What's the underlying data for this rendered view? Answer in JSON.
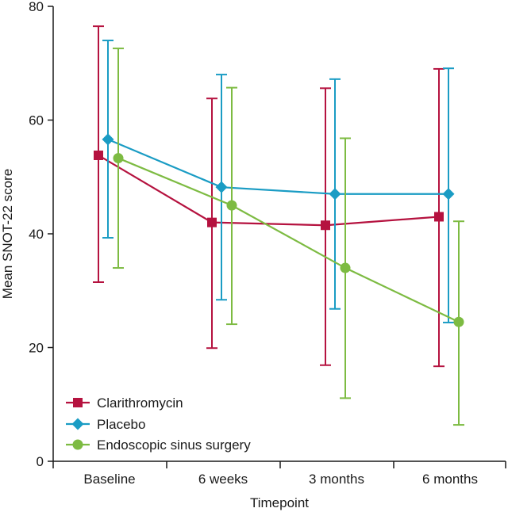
{
  "chart_data": {
    "type": "line",
    "title": "",
    "xlabel": "Timepoint",
    "ylabel": "Mean SNOT-22 score",
    "ylim": [
      0,
      80
    ],
    "yticks": [
      0,
      20,
      40,
      60,
      80
    ],
    "categories": [
      "Baseline",
      "6 weeks",
      "3 months",
      "6 months"
    ],
    "error_bars": true,
    "grid": false,
    "legend_position": "bottom-left",
    "series": [
      {
        "name": "Clarithromycin",
        "color": "#B5123F",
        "marker": "square",
        "values": [
          53.8,
          42.0,
          41.5,
          43.0
        ],
        "lower": [
          31.5,
          19.9,
          16.9,
          16.7
        ],
        "upper": [
          76.5,
          63.8,
          65.6,
          69.0
        ]
      },
      {
        "name": "Placebo",
        "color": "#1A9CC4",
        "marker": "diamond",
        "values": [
          56.6,
          48.2,
          47.0,
          47.0
        ],
        "lower": [
          39.3,
          28.4,
          26.8,
          24.4
        ],
        "upper": [
          74.0,
          68.0,
          67.2,
          69.1
        ]
      },
      {
        "name": "Endoscopic sinus surgery",
        "color": "#7DBB42",
        "marker": "circle",
        "values": [
          53.3,
          45.0,
          34.0,
          24.5
        ],
        "lower": [
          34.0,
          24.1,
          11.1,
          6.4
        ],
        "upper": [
          72.6,
          65.7,
          56.8,
          42.2
        ]
      }
    ]
  }
}
